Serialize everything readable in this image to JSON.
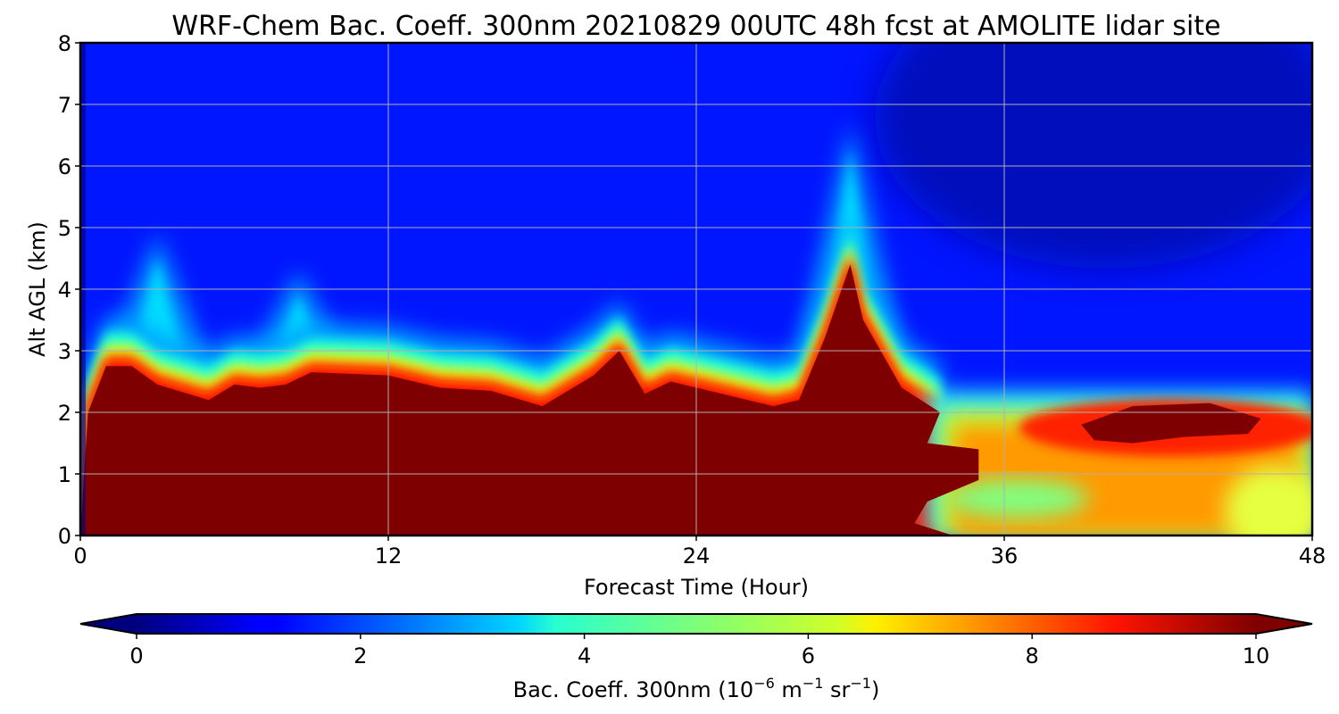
{
  "chart_data": {
    "type": "heatmap",
    "title": "WRF-Chem Bac. Coeff. 300nm  20210829 00UTC 48h fcst at AMOLITE lidar site",
    "xlabel": "Forecast Time (Hour)",
    "ylabel": "Alt AGL (km)",
    "xlim": [
      0,
      48
    ],
    "ylim": [
      0,
      8
    ],
    "x_ticks": [
      "0",
      "12",
      "24",
      "36",
      "48"
    ],
    "y_ticks": [
      "0",
      "1",
      "2",
      "3",
      "4",
      "5",
      "6",
      "7",
      "8"
    ],
    "grid": true,
    "colormap": "jet",
    "colorbar": {
      "label_main": "Bac. Coeff. 300nm  (10",
      "label_exp1": "−6",
      "label_mid": " m",
      "label_exp2": "−1",
      "label_mid2": " sr",
      "label_exp3": "−1",
      "label_end": ")",
      "range": [
        0,
        10
      ],
      "ticks": [
        "0",
        "2",
        "4",
        "6",
        "8",
        "10"
      ],
      "extend": "both",
      "min_color": "#00007f",
      "max_color": "#7f0000"
    },
    "saturated_layer_top_km": [
      {
        "x": 0.0,
        "y": 0.0
      },
      {
        "x": 0.3,
        "y": 2.0
      },
      {
        "x": 1.0,
        "y": 2.75
      },
      {
        "x": 2.0,
        "y": 2.75
      },
      {
        "x": 3.0,
        "y": 2.45
      },
      {
        "x": 5.0,
        "y": 2.2
      },
      {
        "x": 6.0,
        "y": 2.45
      },
      {
        "x": 7.0,
        "y": 2.4
      },
      {
        "x": 8.0,
        "y": 2.45
      },
      {
        "x": 9.0,
        "y": 2.65
      },
      {
        "x": 12.0,
        "y": 2.6
      },
      {
        "x": 14.0,
        "y": 2.4
      },
      {
        "x": 16.0,
        "y": 2.35
      },
      {
        "x": 18.0,
        "y": 2.1
      },
      {
        "x": 20.0,
        "y": 2.6
      },
      {
        "x": 21.0,
        "y": 3.0
      },
      {
        "x": 22.0,
        "y": 2.3
      },
      {
        "x": 23.0,
        "y": 2.5
      },
      {
        "x": 25.0,
        "y": 2.3
      },
      {
        "x": 27.0,
        "y": 2.1
      },
      {
        "x": 28.0,
        "y": 2.2
      },
      {
        "x": 29.0,
        "y": 3.2
      },
      {
        "x": 30.0,
        "y": 4.4
      },
      {
        "x": 30.5,
        "y": 3.5
      },
      {
        "x": 32.0,
        "y": 2.4
      },
      {
        "x": 33.5,
        "y": 2.0
      },
      {
        "x": 33.0,
        "y": 1.5
      },
      {
        "x": 35.0,
        "y": 1.4
      },
      {
        "x": 35.0,
        "y": 0.9
      },
      {
        "x": 33.0,
        "y": 0.55
      },
      {
        "x": 32.5,
        "y": 0.2
      },
      {
        "x": 34.0,
        "y": 0.0
      }
    ],
    "upper_plume_peaks": [
      {
        "x": 3.0,
        "y": 4.9
      },
      {
        "x": 8.5,
        "y": 4.3
      },
      {
        "x": 21.0,
        "y": 3.25
      },
      {
        "x": 30.0,
        "y": 6.7
      }
    ],
    "elevated_core_region": [
      {
        "x": 39.0,
        "y": 1.8
      },
      {
        "x": 41.0,
        "y": 2.1
      },
      {
        "x": 44.0,
        "y": 2.15
      },
      {
        "x": 46.0,
        "y": 1.9
      },
      {
        "x": 45.5,
        "y": 1.65
      },
      {
        "x": 43.0,
        "y": 1.6
      },
      {
        "x": 41.0,
        "y": 1.5
      },
      {
        "x": 39.5,
        "y": 1.55
      }
    ]
  }
}
